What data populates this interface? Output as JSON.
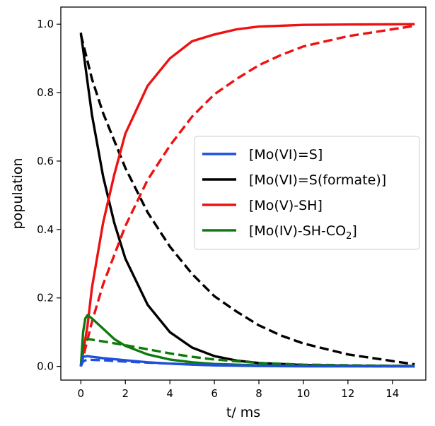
{
  "chart_data": {
    "type": "line",
    "xlabel": "t/ ms",
    "ylabel": "population",
    "xlim": [
      -0.9,
      15.5
    ],
    "ylim": [
      -0.04,
      1.05
    ],
    "x_ticks": [
      "0",
      "2",
      "4",
      "6",
      "8",
      "10",
      "12",
      "14"
    ],
    "y_ticks": [
      "0.0",
      "0.2",
      "0.4",
      "0.6",
      "0.8",
      "1.0"
    ],
    "grid": false,
    "legend_position": "right",
    "legend": [
      {
        "text": "[Mo(VI)=S]",
        "color": "#1f4fdb"
      },
      {
        "text": "[Mo(VI)=S(formate)]",
        "color": "#000000"
      },
      {
        "text": "[Mo(V)-SH]",
        "color": "#ee1111"
      },
      {
        "text": "[Mo(IV)-SH-CO",
        "sub": "2",
        "tail": "]",
        "color": "#0e7a0e"
      }
    ],
    "series": [
      {
        "legend_index": 1,
        "color": "#000000",
        "style": "solid",
        "x": [
          0,
          0.5,
          1,
          1.5,
          2,
          3,
          4,
          5,
          6,
          7,
          8,
          10,
          12,
          15
        ],
        "y": [
          0.975,
          0.735,
          0.555,
          0.42,
          0.315,
          0.18,
          0.1,
          0.055,
          0.03,
          0.017,
          0.01,
          0.004,
          0.002,
          0.001
        ]
      },
      {
        "legend_index": 1,
        "color": "#000000",
        "style": "dashed",
        "x": [
          0,
          0.5,
          1,
          2,
          3,
          4,
          5,
          6,
          7,
          8,
          9,
          10,
          12,
          15
        ],
        "y": [
          0.97,
          0.84,
          0.74,
          0.58,
          0.45,
          0.35,
          0.27,
          0.205,
          0.16,
          0.12,
          0.09,
          0.067,
          0.035,
          0.006
        ]
      },
      {
        "legend_index": 2,
        "color": "#ee1111",
        "style": "solid",
        "x": [
          0,
          0.3,
          0.5,
          1,
          1.5,
          2,
          3,
          4,
          5,
          6,
          7,
          8,
          10,
          12,
          15
        ],
        "y": [
          0.0,
          0.12,
          0.23,
          0.42,
          0.56,
          0.68,
          0.82,
          0.9,
          0.95,
          0.97,
          0.985,
          0.993,
          0.998,
          0.999,
          1.0
        ]
      },
      {
        "legend_index": 2,
        "color": "#ee1111",
        "style": "dashed",
        "x": [
          0,
          0.5,
          1,
          2,
          3,
          4,
          5,
          6,
          7,
          8,
          9,
          10,
          12,
          15
        ],
        "y": [
          0.0,
          0.13,
          0.24,
          0.41,
          0.545,
          0.645,
          0.73,
          0.795,
          0.84,
          0.88,
          0.91,
          0.935,
          0.965,
          0.995
        ]
      },
      {
        "legend_index": 3,
        "color": "#0e7a0e",
        "style": "solid",
        "x": [
          0,
          0.1,
          0.2,
          0.3,
          0.5,
          1,
          1.5,
          2,
          3,
          4,
          5,
          6,
          8,
          10,
          15
        ],
        "y": [
          0.0,
          0.1,
          0.14,
          0.15,
          0.14,
          0.11,
          0.08,
          0.06,
          0.035,
          0.02,
          0.012,
          0.007,
          0.003,
          0.001,
          0.0
        ]
      },
      {
        "legend_index": 3,
        "color": "#0e7a0e",
        "style": "dashed",
        "x": [
          0,
          0.1,
          0.3,
          0.5,
          1,
          2,
          3,
          4,
          5,
          6,
          8,
          10,
          15
        ],
        "y": [
          0.0,
          0.06,
          0.08,
          0.078,
          0.073,
          0.062,
          0.05,
          0.038,
          0.028,
          0.02,
          0.01,
          0.005,
          0.001
        ]
      },
      {
        "legend_index": 0,
        "color": "#1f4fdb",
        "style": "solid",
        "x": [
          0,
          0.1,
          0.3,
          0.5,
          1,
          2,
          3,
          4,
          5,
          6,
          8,
          10,
          15
        ],
        "y": [
          0.0,
          0.028,
          0.03,
          0.028,
          0.024,
          0.018,
          0.012,
          0.008,
          0.005,
          0.003,
          0.001,
          0.0,
          0.0
        ]
      },
      {
        "legend_index": 0,
        "color": "#1f4fdb",
        "style": "dashed",
        "x": [
          0,
          0.1,
          0.3,
          0.5,
          1,
          2,
          3,
          4,
          5,
          6,
          8,
          10,
          15
        ],
        "y": [
          0.0,
          0.015,
          0.02,
          0.019,
          0.018,
          0.014,
          0.011,
          0.008,
          0.006,
          0.004,
          0.002,
          0.001,
          0.0
        ]
      }
    ]
  }
}
